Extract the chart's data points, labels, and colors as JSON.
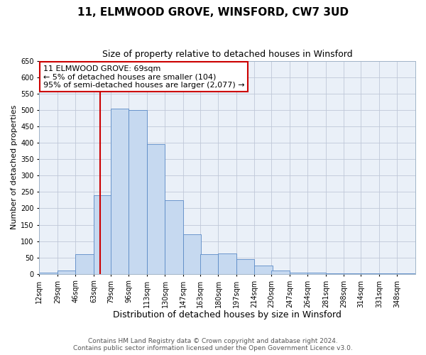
{
  "title": "11, ELMWOOD GROVE, WINSFORD, CW7 3UD",
  "subtitle": "Size of property relative to detached houses in Winsford",
  "xlabel": "Distribution of detached houses by size in Winsford",
  "ylabel": "Number of detached properties",
  "bin_labels": [
    "12sqm",
    "29sqm",
    "46sqm",
    "63sqm",
    "79sqm",
    "96sqm",
    "113sqm",
    "130sqm",
    "147sqm",
    "163sqm",
    "180sqm",
    "197sqm",
    "214sqm",
    "230sqm",
    "247sqm",
    "264sqm",
    "281sqm",
    "298sqm",
    "314sqm",
    "331sqm",
    "348sqm"
  ],
  "bin_edges": [
    12,
    29,
    46,
    63,
    79,
    96,
    113,
    130,
    147,
    163,
    180,
    197,
    214,
    230,
    247,
    264,
    281,
    298,
    314,
    331,
    348
  ],
  "bar_heights": [
    5,
    10,
    60,
    240,
    505,
    500,
    395,
    225,
    120,
    60,
    63,
    45,
    25,
    10,
    5,
    3,
    2,
    2,
    2,
    2,
    2
  ],
  "bar_facecolor": "#c6d9f0",
  "bar_edgecolor": "#5a8ac6",
  "grid_color": "#c0c8d8",
  "bg_color": "#eaf0f8",
  "vline_x": 69,
  "vline_color": "#cc0000",
  "annotation_text": "11 ELMWOOD GROVE: 69sqm\n← 5% of detached houses are smaller (104)\n95% of semi-detached houses are larger (2,077) →",
  "annotation_box_edgecolor": "#cc0000",
  "ylim": [
    0,
    650
  ],
  "yticks": [
    0,
    50,
    100,
    150,
    200,
    250,
    300,
    350,
    400,
    450,
    500,
    550,
    600,
    650
  ],
  "footer_line1": "Contains HM Land Registry data © Crown copyright and database right 2024.",
  "footer_line2": "Contains public sector information licensed under the Open Government Licence v3.0.",
  "title_fontsize": 11,
  "subtitle_fontsize": 9,
  "xlabel_fontsize": 9,
  "ylabel_fontsize": 8,
  "tick_fontsize": 7,
  "annotation_fontsize": 8,
  "footer_fontsize": 6.5
}
